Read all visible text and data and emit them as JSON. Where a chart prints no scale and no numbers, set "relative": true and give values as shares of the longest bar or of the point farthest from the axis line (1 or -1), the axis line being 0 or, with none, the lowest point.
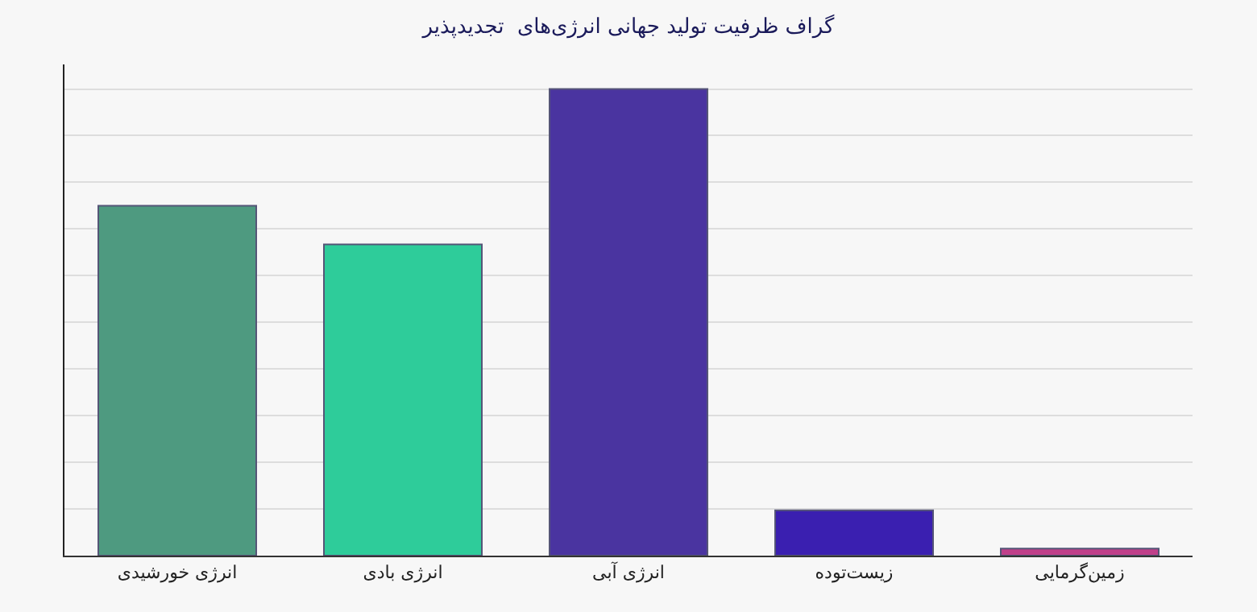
{
  "chart_data": {
    "type": "bar",
    "title": "گراف ظرفیت تولید جهانی انرژی‌های  تجدیدپذیر",
    "categories": [
      "انرژی خورشیدی",
      "انرژی بادی",
      "انرژی آبی",
      "زیست‌توده",
      "زمین‌گرمایی"
    ],
    "values": [
      0.75,
      0.667,
      1,
      0.097,
      0.015
    ],
    "colors": [
      "#4e9a80",
      "#2ecc9a",
      "#4a34a0",
      "#3a1fb0",
      "#c0408a"
    ],
    "relative": true,
    "grid": true,
    "legend": false
  }
}
